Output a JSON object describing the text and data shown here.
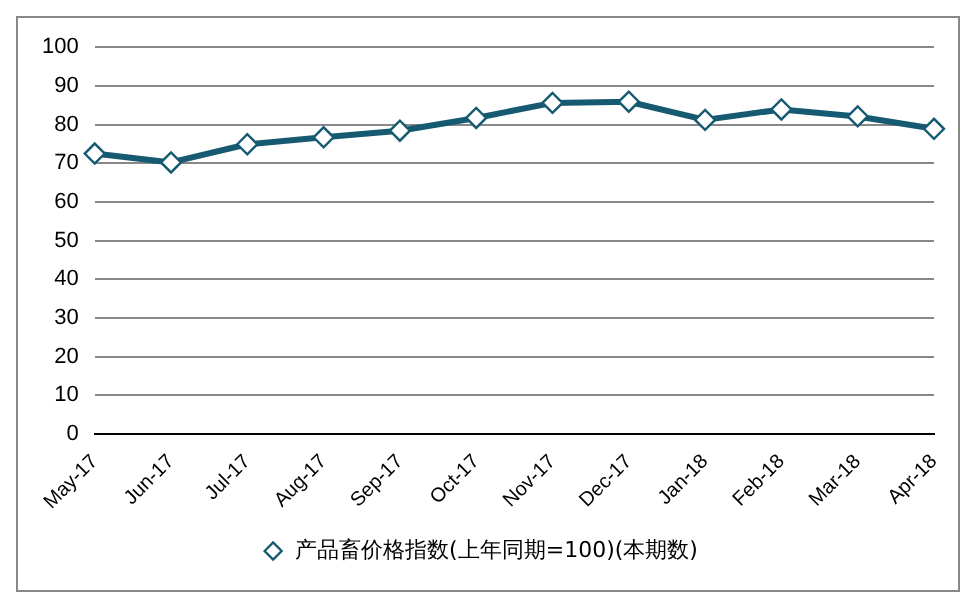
{
  "chart_data": {
    "type": "line",
    "categories": [
      "May-17",
      "Jun-17",
      "Jul-17",
      "Aug-17",
      "Sep-17",
      "Oct-17",
      "Nov-17",
      "Dec-17",
      "Jan-18",
      "Feb-18",
      "Mar-18",
      "Apr-18"
    ],
    "series": [
      {
        "name": "产品畜价格指数(上年同期=100)(本期数)",
        "color": "#165a72",
        "values": [
          72.5,
          70.2,
          74.9,
          76.7,
          78.4,
          81.7,
          85.6,
          85.9,
          81.2,
          83.9,
          82.1,
          78.9
        ]
      }
    ],
    "ylim": [
      0,
      100
    ],
    "yticks": [
      0,
      10,
      20,
      30,
      40,
      50,
      60,
      70,
      80,
      90,
      100
    ],
    "grid": "y",
    "legend": "bottom",
    "marker": "diamond",
    "line_style": "solid"
  }
}
